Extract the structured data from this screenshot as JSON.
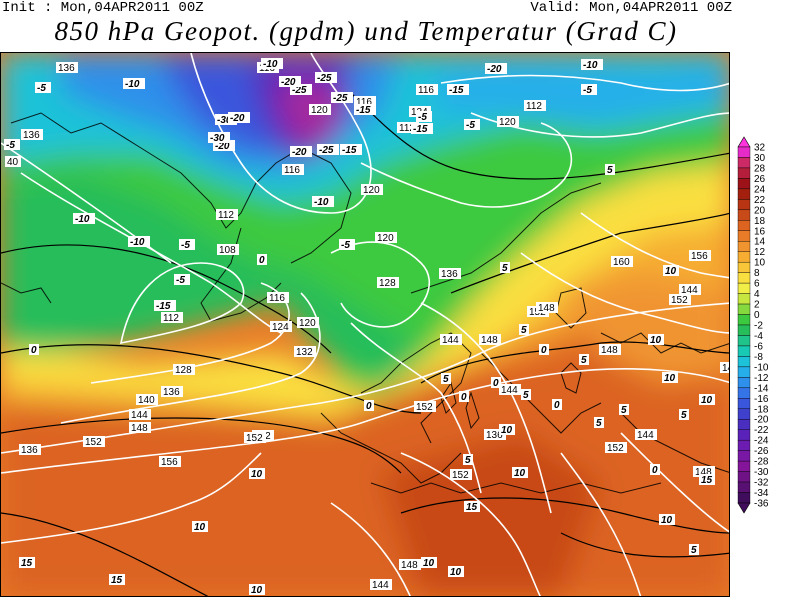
{
  "header": {
    "init": "Init : Mon,04APR2011 00Z",
    "valid": "Valid: Mon,04APR2011 00Z",
    "title": "850 hPa Geopot. (gpdm) und Temperatur (Grad C)"
  },
  "legend": {
    "values": [
      "32",
      "30",
      "28",
      "26",
      "24",
      "22",
      "20",
      "18",
      "16",
      "14",
      "12",
      "10",
      "8",
      "6",
      "4",
      "2",
      "0",
      "-2",
      "-4",
      "-6",
      "-8",
      "-10",
      "-12",
      "-14",
      "-16",
      "-18",
      "-20",
      "-22",
      "-24",
      "-26",
      "-28",
      "-30",
      "-32",
      "-34",
      "-36"
    ],
    "colors": [
      "#ff33dd",
      "#e62bc9",
      "#cc2a66",
      "#b41e3b",
      "#9c1218",
      "#a4200e",
      "#b83412",
      "#c84a18",
      "#dc6420",
      "#e87b28",
      "#f09430",
      "#f6ad32",
      "#f8c638",
      "#fadf40",
      "#f2ee48",
      "#c7e640",
      "#85d83e",
      "#3dc93f",
      "#27bd5a",
      "#20c38a",
      "#18c9b4",
      "#1ec2d8",
      "#26aeea",
      "#2e90ea",
      "#3574e6",
      "#3a56dc",
      "#3f40cc",
      "#4a2ec0",
      "#5a22b8",
      "#6c1cb0",
      "#7a18a6",
      "#84149a",
      "#6e1286",
      "#581072",
      "#400c5c"
    ]
  },
  "map": {
    "geopotential_labels": [
      "136",
      "136",
      "40",
      "116",
      "120",
      "116",
      "116",
      "124",
      "112",
      "120",
      "112",
      "116",
      "120",
      "112",
      "108",
      "120",
      "116",
      "112",
      "120",
      "124",
      "128",
      "132",
      "136",
      "128",
      "136",
      "140",
      "144",
      "148",
      "152",
      "152",
      "156",
      "152",
      "152",
      "144",
      "152",
      "144",
      "148",
      "136",
      "148",
      "152",
      "144",
      "160",
      "156",
      "152",
      "144",
      "148",
      "144",
      "148",
      "148",
      "144",
      "152",
      "136"
    ],
    "temperature_labels": [
      "-5",
      "-10",
      "-30",
      "-20",
      "-20",
      "-30",
      "-25",
      "-25",
      "-20",
      "-10",
      "-25",
      "-15",
      "-25",
      "-15",
      "-5",
      "-20",
      "-10",
      "-5",
      "-15",
      "-20",
      "-5",
      "-15",
      "-5",
      "-10",
      "-5",
      "0",
      "5",
      "-10",
      "-10",
      "0",
      "-15",
      "-5",
      "-5",
      "5",
      "0",
      "0",
      "5",
      "0",
      "5",
      "10",
      "10",
      "5",
      "5",
      "10",
      "0",
      "5",
      "10",
      "10",
      "10",
      "10",
      "15",
      "10",
      "15",
      "10",
      "5",
      "15",
      "15",
      "10",
      "10",
      "0",
      "5",
      "5",
      "5",
      "10",
      "15",
      "10",
      "0"
    ]
  }
}
